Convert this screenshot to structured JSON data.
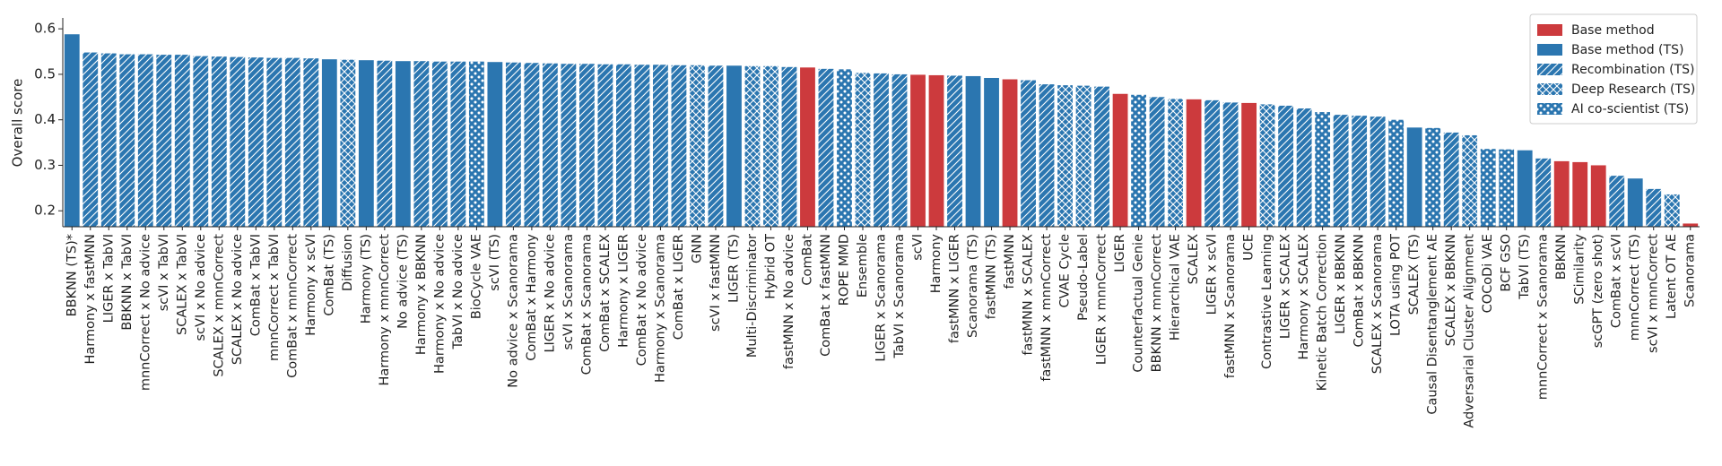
{
  "chart_data": {
    "type": "bar",
    "y_label": "Overall score",
    "categories": [
      "BBKNN (TS)*",
      "Harmony x fastMNN",
      "LIGER x TabVI",
      "BBKNN x TabVI",
      "mnnCorrect x No advice",
      "scVI x TabVI",
      "SCALEX x TabVI",
      "scVI x No advice",
      "SCALEX x mnnCorrect",
      "SCALEX x No advice",
      "ComBat x TabVI",
      "mnnCorrect x TabVI",
      "ComBat x mnnCorrect",
      "Harmony x scVI",
      "ComBat (TS)",
      "Diffusion",
      "Harmony (TS)",
      "Harmony x mnnCorrect",
      "No advice (TS)",
      "Harmony x BBKNN",
      "Harmony x No advice",
      "TabVI x No advice",
      "BioCycle VAE",
      "scVI (TS)",
      "No advice x Scanorama",
      "ComBat x Harmony",
      "LIGER x No advice",
      "scVI x Scanorama",
      "ComBat x Scanorama",
      "ComBat x SCALEX",
      "Harmony x LIGER",
      "ComBat x No advice",
      "Harmony x Scanorama",
      "ComBat x LIGER",
      "GNN",
      "scVI x fastMNN",
      "LIGER (TS)",
      "Multi-Discriminator",
      "Hybrid OT",
      "fastMNN x No advice",
      "ComBat",
      "ComBat x fastMNN",
      "ROPE MMD",
      "Ensemble",
      "LIGER x Scanorama",
      "TabVI x Scanorama",
      "scVI",
      "Harmony",
      "fastMNN x LIGER",
      "Scanorama (TS)",
      "fastMNN (TS)",
      "fastMNN",
      "fastMNN x SCALEX",
      "fastMNN x mnnCorrect",
      "CVAE Cycle",
      "Pseudo-Label",
      "LIGER x mnnCorrect",
      "LIGER",
      "Counterfactual Genie",
      "BBKNN x mnnCorrect",
      "Hierarchical VAE",
      "SCALEX",
      "LIGER x scVI",
      "fastMNN x Scanorama",
      "UCE",
      "Contrastive Learning",
      "LIGER x SCALEX",
      "Harmony x SCALEX",
      "Kinetic Batch Correction",
      "LIGER x BBKNN",
      "ComBat x BBKNN",
      "SCALEX x Scanorama",
      "LOTA using POT",
      "SCALEX (TS)",
      "Causal Disentanglement AE",
      "SCALEX x BBKNN",
      "Adversarial Cluster Alignment",
      "COCoDi VAE",
      "BCF GSO",
      "TabVI (TS)",
      "mnnCorrect x Scanorama",
      "BBKNN",
      "SCimilarity",
      "scGPT (zero shot)",
      "ComBat x scVI",
      "mnnCorrect (TS)",
      "scVI x mnnCorrect",
      "Latent OT AE",
      "Scanorama"
    ],
    "series": [
      {
        "name": "Base method",
        "color": "#cc3a3d",
        "pattern": "none",
        "values": [
          null,
          null,
          null,
          null,
          null,
          null,
          null,
          null,
          null,
          null,
          null,
          null,
          null,
          null,
          null,
          null,
          null,
          null,
          null,
          null,
          null,
          null,
          null,
          null,
          null,
          null,
          null,
          null,
          null,
          null,
          null,
          null,
          null,
          null,
          null,
          null,
          null,
          null,
          null,
          null,
          0.515,
          null,
          null,
          null,
          null,
          null,
          0.499,
          0.498,
          null,
          null,
          null,
          0.489,
          null,
          null,
          null,
          null,
          null,
          0.457,
          null,
          null,
          null,
          0.445,
          null,
          null,
          0.437,
          null,
          null,
          null,
          null,
          null,
          null,
          null,
          null,
          null,
          null,
          null,
          null,
          null,
          null,
          null,
          null,
          0.309,
          0.307,
          0.3,
          null,
          null,
          null,
          null,
          0.172
        ]
      },
      {
        "name": "Base method (TS)",
        "color": "#2b76b0",
        "pattern": "none",
        "values": [
          0.588,
          null,
          null,
          null,
          null,
          null,
          null,
          null,
          null,
          null,
          null,
          null,
          null,
          null,
          0.533,
          null,
          0.531,
          null,
          0.529,
          null,
          null,
          null,
          null,
          0.527,
          null,
          null,
          null,
          null,
          null,
          null,
          null,
          null,
          null,
          null,
          null,
          null,
          0.519,
          null,
          null,
          null,
          null,
          null,
          null,
          null,
          null,
          null,
          null,
          null,
          null,
          0.496,
          0.492,
          null,
          null,
          null,
          null,
          null,
          null,
          null,
          null,
          null,
          null,
          null,
          null,
          null,
          null,
          null,
          null,
          null,
          null,
          null,
          null,
          null,
          null,
          0.383,
          null,
          null,
          null,
          null,
          null,
          0.333,
          null,
          null,
          null,
          null,
          null,
          0.271,
          null,
          null,
          null
        ]
      },
      {
        "name": "Recombination (TS)",
        "color": "#2b76b0",
        "pattern": "hatch",
        "values": [
          null,
          0.548,
          0.546,
          0.544,
          0.544,
          0.543,
          0.543,
          0.54,
          0.539,
          0.538,
          0.537,
          0.536,
          0.536,
          0.535,
          null,
          null,
          null,
          0.53,
          null,
          0.529,
          0.528,
          0.528,
          null,
          null,
          0.526,
          0.525,
          0.524,
          0.523,
          0.523,
          0.522,
          0.522,
          0.521,
          0.521,
          0.52,
          null,
          0.519,
          null,
          null,
          null,
          0.516,
          null,
          0.512,
          null,
          null,
          0.502,
          0.5,
          null,
          null,
          0.497,
          null,
          null,
          null,
          0.487,
          0.478,
          null,
          null,
          0.473,
          null,
          null,
          0.45,
          null,
          null,
          0.443,
          0.438,
          null,
          null,
          0.431,
          0.425,
          null,
          0.411,
          0.409,
          0.407,
          null,
          null,
          null,
          0.372,
          null,
          null,
          null,
          null,
          0.315,
          null,
          null,
          null,
          0.277,
          null,
          0.248,
          null,
          null
        ]
      },
      {
        "name": "Deep Research (TS)",
        "color": "#2b76b0",
        "pattern": "cross",
        "values": [
          null,
          null,
          null,
          null,
          null,
          null,
          null,
          null,
          null,
          null,
          null,
          null,
          null,
          null,
          null,
          0.532,
          null,
          null,
          null,
          null,
          null,
          null,
          null,
          null,
          null,
          null,
          null,
          null,
          null,
          null,
          null,
          null,
          null,
          null,
          0.52,
          null,
          null,
          0.518,
          0.518,
          null,
          null,
          null,
          null,
          0.503,
          null,
          null,
          null,
          null,
          null,
          null,
          null,
          null,
          null,
          null,
          0.476,
          0.475,
          null,
          null,
          null,
          null,
          0.446,
          null,
          null,
          null,
          null,
          0.434,
          null,
          null,
          null,
          null,
          null,
          null,
          null,
          null,
          null,
          null,
          0.366,
          null,
          null,
          null,
          null,
          null,
          null,
          null,
          null,
          null,
          null,
          0.236,
          null
        ]
      },
      {
        "name": "AI co-scientist (TS)",
        "color": "#2b76b0",
        "pattern": "dots",
        "values": [
          null,
          null,
          null,
          null,
          null,
          null,
          null,
          null,
          null,
          null,
          null,
          null,
          null,
          null,
          null,
          null,
          null,
          null,
          null,
          null,
          null,
          null,
          0.528,
          null,
          null,
          null,
          null,
          null,
          null,
          null,
          null,
          null,
          null,
          null,
          null,
          null,
          null,
          null,
          null,
          null,
          null,
          null,
          0.511,
          null,
          null,
          null,
          null,
          null,
          null,
          null,
          null,
          null,
          null,
          null,
          null,
          null,
          null,
          null,
          0.455,
          null,
          null,
          null,
          null,
          null,
          null,
          null,
          null,
          null,
          0.417,
          null,
          null,
          null,
          0.4,
          null,
          0.382,
          null,
          null,
          0.336,
          0.335,
          null,
          null,
          null,
          null,
          null,
          null,
          null,
          null,
          null,
          null
        ]
      }
    ],
    "ylim": [
      0.165,
      0.62
    ],
    "yticks": [
      0.2,
      0.3,
      0.4,
      0.5,
      0.6
    ],
    "grid": false,
    "legend": "upper right"
  }
}
